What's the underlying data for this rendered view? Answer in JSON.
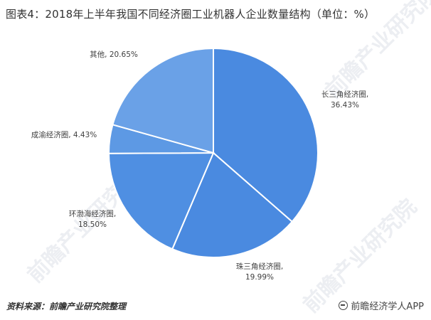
{
  "title": "图表4：2018年上半年我国不同经济圈工业机器人企业数量结构（单位：%）",
  "chart_data": {
    "type": "pie",
    "series": [
      {
        "name": "长三角经济圈",
        "value": 36.43,
        "label": "36.43%",
        "color": "#4a8ae0"
      },
      {
        "name": "珠三角经济圈",
        "value": 19.99,
        "label": "19.99%",
        "color": "#4a8ae0"
      },
      {
        "name": "环渤海经济圈",
        "value": 18.5,
        "label": "18.50%",
        "color": "#4f8fe2"
      },
      {
        "name": "成渝经济圈",
        "value": 4.43,
        "label": "4.43%",
        "color": "#5d99e4"
      },
      {
        "name": "其他",
        "value": 20.65,
        "label": "20.65%",
        "color": "#6aa1e7"
      }
    ],
    "start_angle_deg": 0,
    "direction": "clockwise"
  },
  "watermark_text": "前瞻产业研究院",
  "footer": {
    "source": "资料来源：前瞻产业研究院整理",
    "brand": "前瞻经济学人APP"
  }
}
